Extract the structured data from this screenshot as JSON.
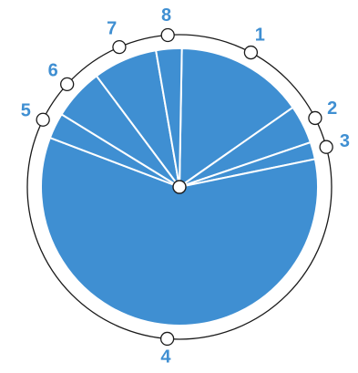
{
  "colors": {
    "slice_fill": "#3f8fd2",
    "label_color": "#3f8fd2"
  },
  "chart_data": {
    "type": "pie",
    "categories": [
      "1",
      "2",
      "3",
      "4",
      "5",
      "6",
      "7",
      "8"
    ],
    "values": [
      15.0,
      4.5,
      2.0,
      59.0,
      3.0,
      6.0,
      7.5,
      3.0
    ],
    "start_angle_deg": 1,
    "direction": "clockwise"
  }
}
